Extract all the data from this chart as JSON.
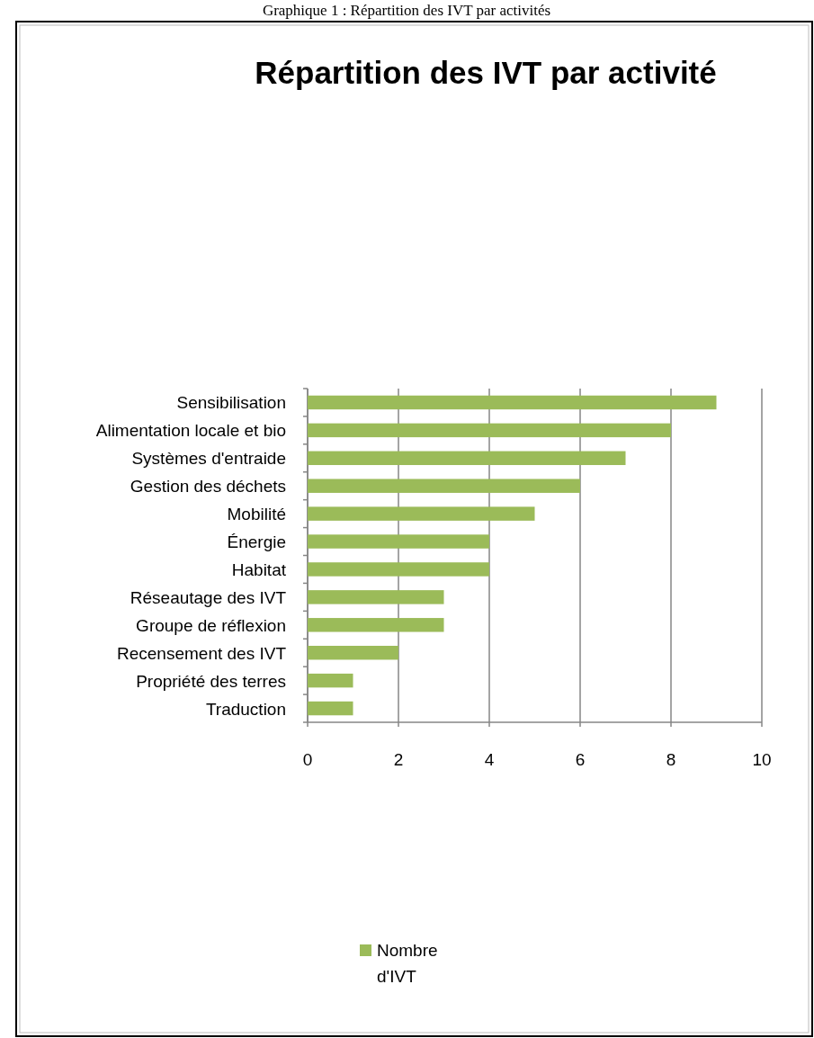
{
  "chart_data": {
    "type": "bar",
    "orientation": "horizontal",
    "title": "Répartition des IVT par activité",
    "annotations": [
      "Graphique 1 : Répartition des IVT par activités"
    ],
    "categories": [
      "Sensibilisation",
      "Alimentation locale et bio",
      "Systèmes d'entraide",
      "Gestion des déchets",
      "Mobilité",
      "Énergie",
      "Habitat",
      "Réseautage des IVT",
      "Groupe de réflexion",
      "Recensement des IVT",
      "Propriété des terres",
      "Traduction"
    ],
    "series": [
      {
        "name": "Nombre d'IVT",
        "color": "#9bbb59",
        "values": [
          9,
          8,
          7,
          6,
          5,
          4,
          4,
          3,
          3,
          2,
          1,
          1
        ]
      }
    ],
    "xlim": [
      0,
      10
    ],
    "xticks": [
      0,
      2,
      4,
      6,
      8,
      10
    ],
    "grid": "x",
    "legend": "bottom"
  }
}
